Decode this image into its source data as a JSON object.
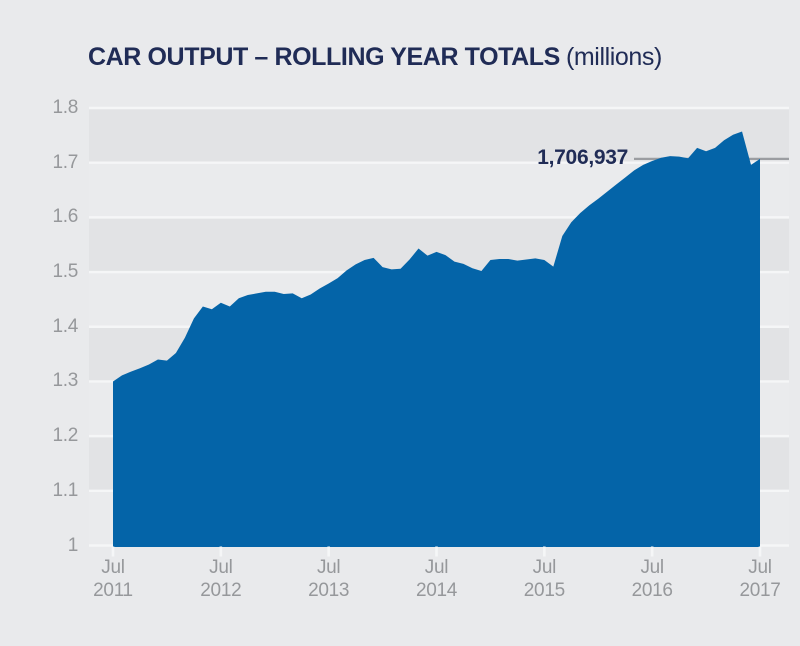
{
  "title": {
    "main": "CAR OUTPUT – ROLLING YEAR TOTALS",
    "suffix": "(millions)"
  },
  "colors": {
    "background": "#e9eaec",
    "band_dark": "#e2e3e5",
    "band_light": "#eaebed",
    "gridline": "#f5f6f7",
    "area_fill": "#0464a8",
    "title_text": "#202c56",
    "axis_text": "#96989b",
    "annotation_text": "#202c56",
    "annotation_line": "#9b9da1"
  },
  "chart_data": {
    "type": "area",
    "title": "CAR OUTPUT – ROLLING YEAR TOTALS (millions)",
    "unit": "millions",
    "interval": "monthly",
    "x_start": "Jul 2011",
    "x_end": "Jul 2017",
    "ylim": [
      1.0,
      1.8
    ],
    "grid": "horizontal-white-lines-with-alternating-bands",
    "y_ticks": [
      {
        "label": "1.8",
        "value": 1.8
      },
      {
        "label": "1.7",
        "value": 1.7
      },
      {
        "label": "1.6",
        "value": 1.6
      },
      {
        "label": "1.5",
        "value": 1.5
      },
      {
        "label": "1.4",
        "value": 1.4
      },
      {
        "label": "1.3",
        "value": 1.3
      },
      {
        "label": "1.2",
        "value": 1.2
      },
      {
        "label": "1.1",
        "value": 1.1
      },
      {
        "label": "1",
        "value": 1.0
      }
    ],
    "x_ticks": [
      {
        "line1": "Jul",
        "line2": "2011"
      },
      {
        "line1": "Jul",
        "line2": "2012"
      },
      {
        "line1": "Jul",
        "line2": "2013"
      },
      {
        "line1": "Jul",
        "line2": "2014"
      },
      {
        "line1": "Jul",
        "line2": "2015"
      },
      {
        "line1": "Jul",
        "line2": "2016"
      },
      {
        "line1": "Jul",
        "line2": "2017"
      }
    ],
    "values": [
      1.3,
      1.311,
      1.318,
      1.324,
      1.331,
      1.34,
      1.338,
      1.352,
      1.38,
      1.415,
      1.437,
      1.432,
      1.444,
      1.437,
      1.452,
      1.458,
      1.461,
      1.464,
      1.464,
      1.46,
      1.461,
      1.452,
      1.459,
      1.47,
      1.479,
      1.489,
      1.503,
      1.514,
      1.522,
      1.526,
      1.509,
      1.505,
      1.506,
      1.523,
      1.543,
      1.53,
      1.537,
      1.531,
      1.519,
      1.515,
      1.507,
      1.502,
      1.522,
      1.524,
      1.524,
      1.521,
      1.523,
      1.525,
      1.522,
      1.51,
      1.566,
      1.591,
      1.608,
      1.622,
      1.634,
      1.647,
      1.66,
      1.673,
      1.686,
      1.696,
      1.703,
      1.709,
      1.712,
      1.711,
      1.708,
      1.727,
      1.721,
      1.727,
      1.741,
      1.751,
      1.757,
      1.696,
      1.70694
    ],
    "annotation": {
      "label": "1,706,937",
      "value": 1.706937
    }
  }
}
